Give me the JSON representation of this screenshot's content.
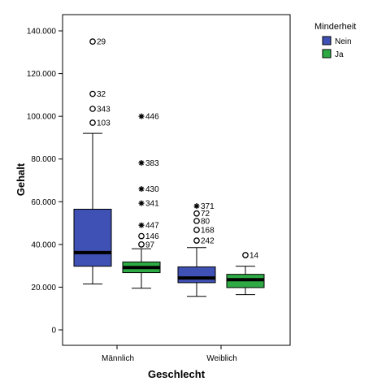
{
  "chart_data": {
    "type": "boxplot",
    "title": "",
    "xlabel": "Geschlecht",
    "ylabel": "Gehalt",
    "ylim": [
      -8000,
      146000
    ],
    "yticks": [
      0,
      20000,
      40000,
      60000,
      80000,
      100000,
      120000,
      140000
    ],
    "ytick_labels": [
      "0",
      "20.000",
      "40.000",
      "60.000",
      "80.000",
      "100.000",
      "120.000",
      "140.000"
    ],
    "categories": [
      "Männlich",
      "Weiblich"
    ],
    "grid": false,
    "legend": {
      "title": "Minderheit",
      "placement": "top-right outside"
    },
    "series": [
      {
        "name": "Nein",
        "color": "#3f51b5",
        "boxes": [
          {
            "category": "Männlich",
            "whisker_low": 21500,
            "q1": 29800,
            "median": 36200,
            "q3": 56500,
            "whisker_high": 92000,
            "outliers": [
              {
                "label": "29",
                "value": 135000,
                "marker": "circle"
              },
              {
                "label": "32",
                "value": 110500,
                "marker": "circle"
              },
              {
                "label": "343",
                "value": 103500,
                "marker": "circle"
              },
              {
                "label": "103",
                "value": 97000,
                "marker": "circle"
              }
            ]
          },
          {
            "category": "Weiblich",
            "whisker_low": 15700,
            "q1": 22100,
            "median": 24300,
            "q3": 29500,
            "whisker_high": 38500,
            "outliers": [
              {
                "label": "371",
                "value": 58000,
                "marker": "star"
              },
              {
                "label": "72",
                "value": 54500,
                "marker": "circle"
              },
              {
                "label": "80",
                "value": 51000,
                "marker": "circle"
              },
              {
                "label": "168",
                "value": 46800,
                "marker": "circle"
              },
              {
                "label": "242",
                "value": 41800,
                "marker": "circle"
              }
            ]
          }
        ]
      },
      {
        "name": "Ja",
        "color": "#2eaa44",
        "boxes": [
          {
            "category": "Männlich",
            "whisker_low": 19500,
            "q1": 26800,
            "median": 29200,
            "q3": 31800,
            "whisker_high": 38000,
            "outliers": [
              {
                "label": "446",
                "value": 100000,
                "marker": "star"
              },
              {
                "label": "383",
                "value": 78200,
                "marker": "star"
              },
              {
                "label": "430",
                "value": 66000,
                "marker": "star"
              },
              {
                "label": "341",
                "value": 59300,
                "marker": "star"
              },
              {
                "label": "447",
                "value": 49000,
                "marker": "star"
              },
              {
                "label": "146",
                "value": 43900,
                "marker": "circle"
              },
              {
                "label": "97",
                "value": 40000,
                "marker": "circle"
              }
            ]
          },
          {
            "category": "Weiblich",
            "whisker_low": 16500,
            "q1": 19800,
            "median": 23500,
            "q3": 26000,
            "whisker_high": 29800,
            "outliers": [
              {
                "label": "14",
                "value": 35000,
                "marker": "circle"
              }
            ]
          }
        ]
      }
    ]
  }
}
